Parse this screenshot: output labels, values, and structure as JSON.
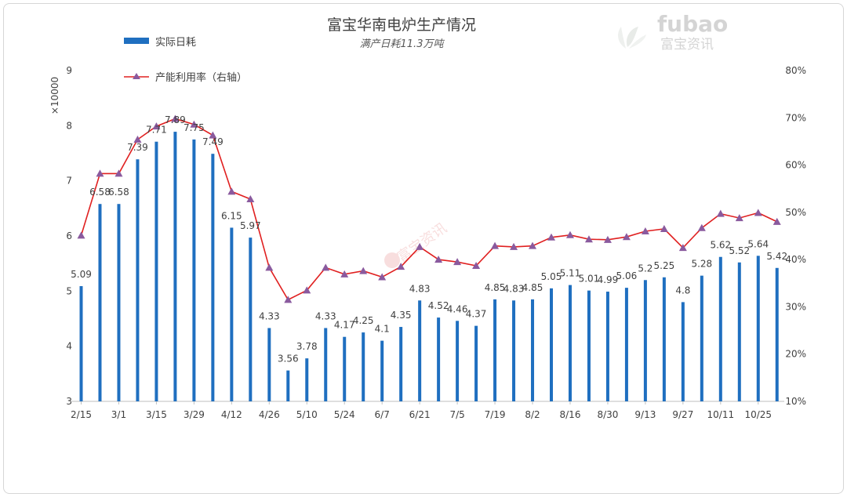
{
  "chart_data": {
    "type": "bar+line",
    "title": "富宝华南电炉生产情况",
    "subtitle": "满产日耗11.3万吨",
    "y_unit_label": "×10000",
    "ylim_left": [
      3,
      9
    ],
    "ylim_right": [
      10,
      80
    ],
    "left_ticks": [
      "3",
      "4",
      "5",
      "6",
      "7",
      "8",
      "9"
    ],
    "right_ticks": [
      "10%",
      "20%",
      "30%",
      "40%",
      "50%",
      "60%",
      "70%",
      "80%"
    ],
    "x_tick_labels": [
      "2/15",
      "3/1",
      "3/15",
      "3/29",
      "4/12",
      "4/26",
      "5/10",
      "5/24",
      "6/7",
      "6/21",
      "7/5",
      "7/19",
      "8/2",
      "8/16",
      "8/30",
      "9/13",
      "9/27",
      "10/11",
      "10/25"
    ],
    "grid": false,
    "legend_position": "top-left",
    "series": [
      {
        "name": "实际日耗",
        "type": "bar",
        "axis": "left",
        "color": "#1f6fc0",
        "values": [
          5.09,
          6.58,
          6.58,
          7.39,
          7.71,
          7.89,
          7.75,
          7.49,
          6.15,
          5.97,
          4.33,
          3.56,
          3.78,
          4.33,
          4.17,
          4.25,
          4.1,
          4.35,
          4.83,
          4.52,
          4.46,
          4.37,
          4.85,
          4.83,
          4.85,
          5.05,
          5.11,
          5.01,
          4.99,
          5.06,
          5.2,
          5.25,
          4.8,
          5.28,
          5.62,
          5.52,
          5.64,
          5.42
        ],
        "labels": [
          "5.09",
          "6.58",
          "6.58",
          "7.39",
          "7.71",
          "7.89",
          "7.75",
          "7.49",
          "6.15",
          "5.97",
          "4.33",
          "3.56",
          "3.78",
          "4.33",
          "4.17",
          "4.25",
          "4.1",
          "4.35",
          "4.83",
          "4.52",
          "4.46",
          "4.37",
          "4.85",
          "4.83",
          "4.85",
          "5.05",
          "5.11",
          "5.01",
          "4.99",
          "5.06",
          "5.2",
          "5.25",
          "4.8",
          "5.28",
          "5.62",
          "5.52",
          "5.64",
          "5.42"
        ]
      },
      {
        "name": "产能利用率（右轴）",
        "type": "line",
        "axis": "right",
        "color": "#e02020",
        "marker_color": "#8a5a9e",
        "values": [
          45.1,
          58.2,
          58.2,
          65.4,
          68.2,
          69.8,
          68.6,
          66.3,
          54.4,
          52.8,
          38.3,
          31.5,
          33.5,
          38.3,
          36.9,
          37.6,
          36.3,
          38.5,
          42.7,
          40.0,
          39.5,
          38.7,
          42.9,
          42.7,
          42.9,
          44.7,
          45.2,
          44.3,
          44.2,
          44.8,
          46.0,
          46.5,
          42.5,
          46.7,
          49.7,
          48.8,
          49.9,
          48.0
        ]
      }
    ]
  },
  "watermark": {
    "brand": "fubao",
    "brand_cn": "富宝资讯",
    "center_text": "富宝资讯"
  },
  "colors": {
    "bar": "#1f6fc0",
    "line": "#e02020",
    "marker": "#8a5a9e",
    "text": "#404040"
  }
}
